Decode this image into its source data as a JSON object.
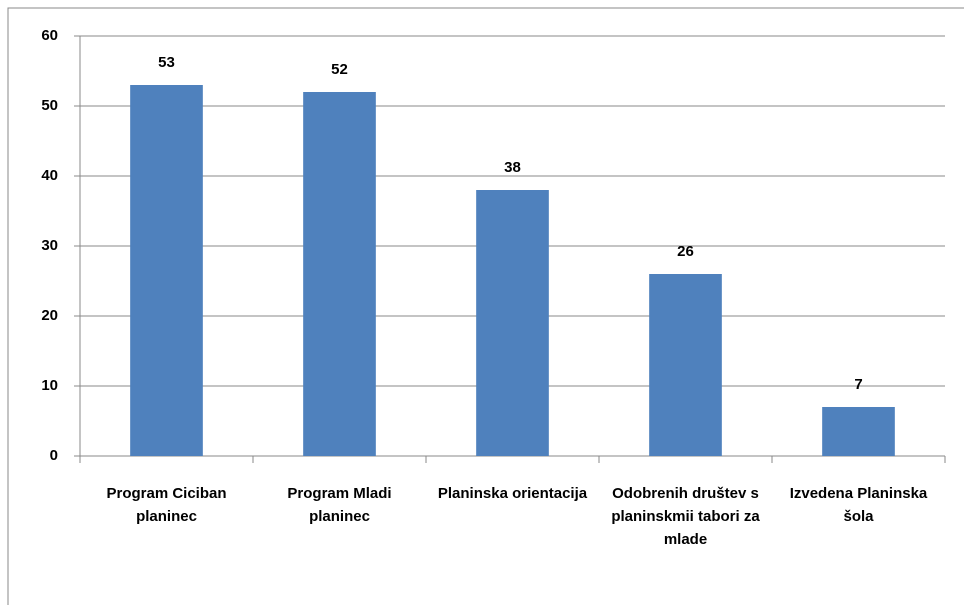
{
  "chart_data": {
    "type": "bar",
    "categories": [
      "Program Ciciban planinec",
      "Program Mladi planinec",
      "Planinska orientacija",
      "Odobrenih društev s planinskmii tabori za mlade",
      "Izvedena Planinska šola"
    ],
    "values": [
      53,
      52,
      38,
      26,
      7
    ],
    "color": "#4f81bd",
    "ylim": [
      0,
      60
    ],
    "yticks": [
      0,
      10,
      20,
      30,
      40,
      50,
      60
    ],
    "grid": true
  }
}
